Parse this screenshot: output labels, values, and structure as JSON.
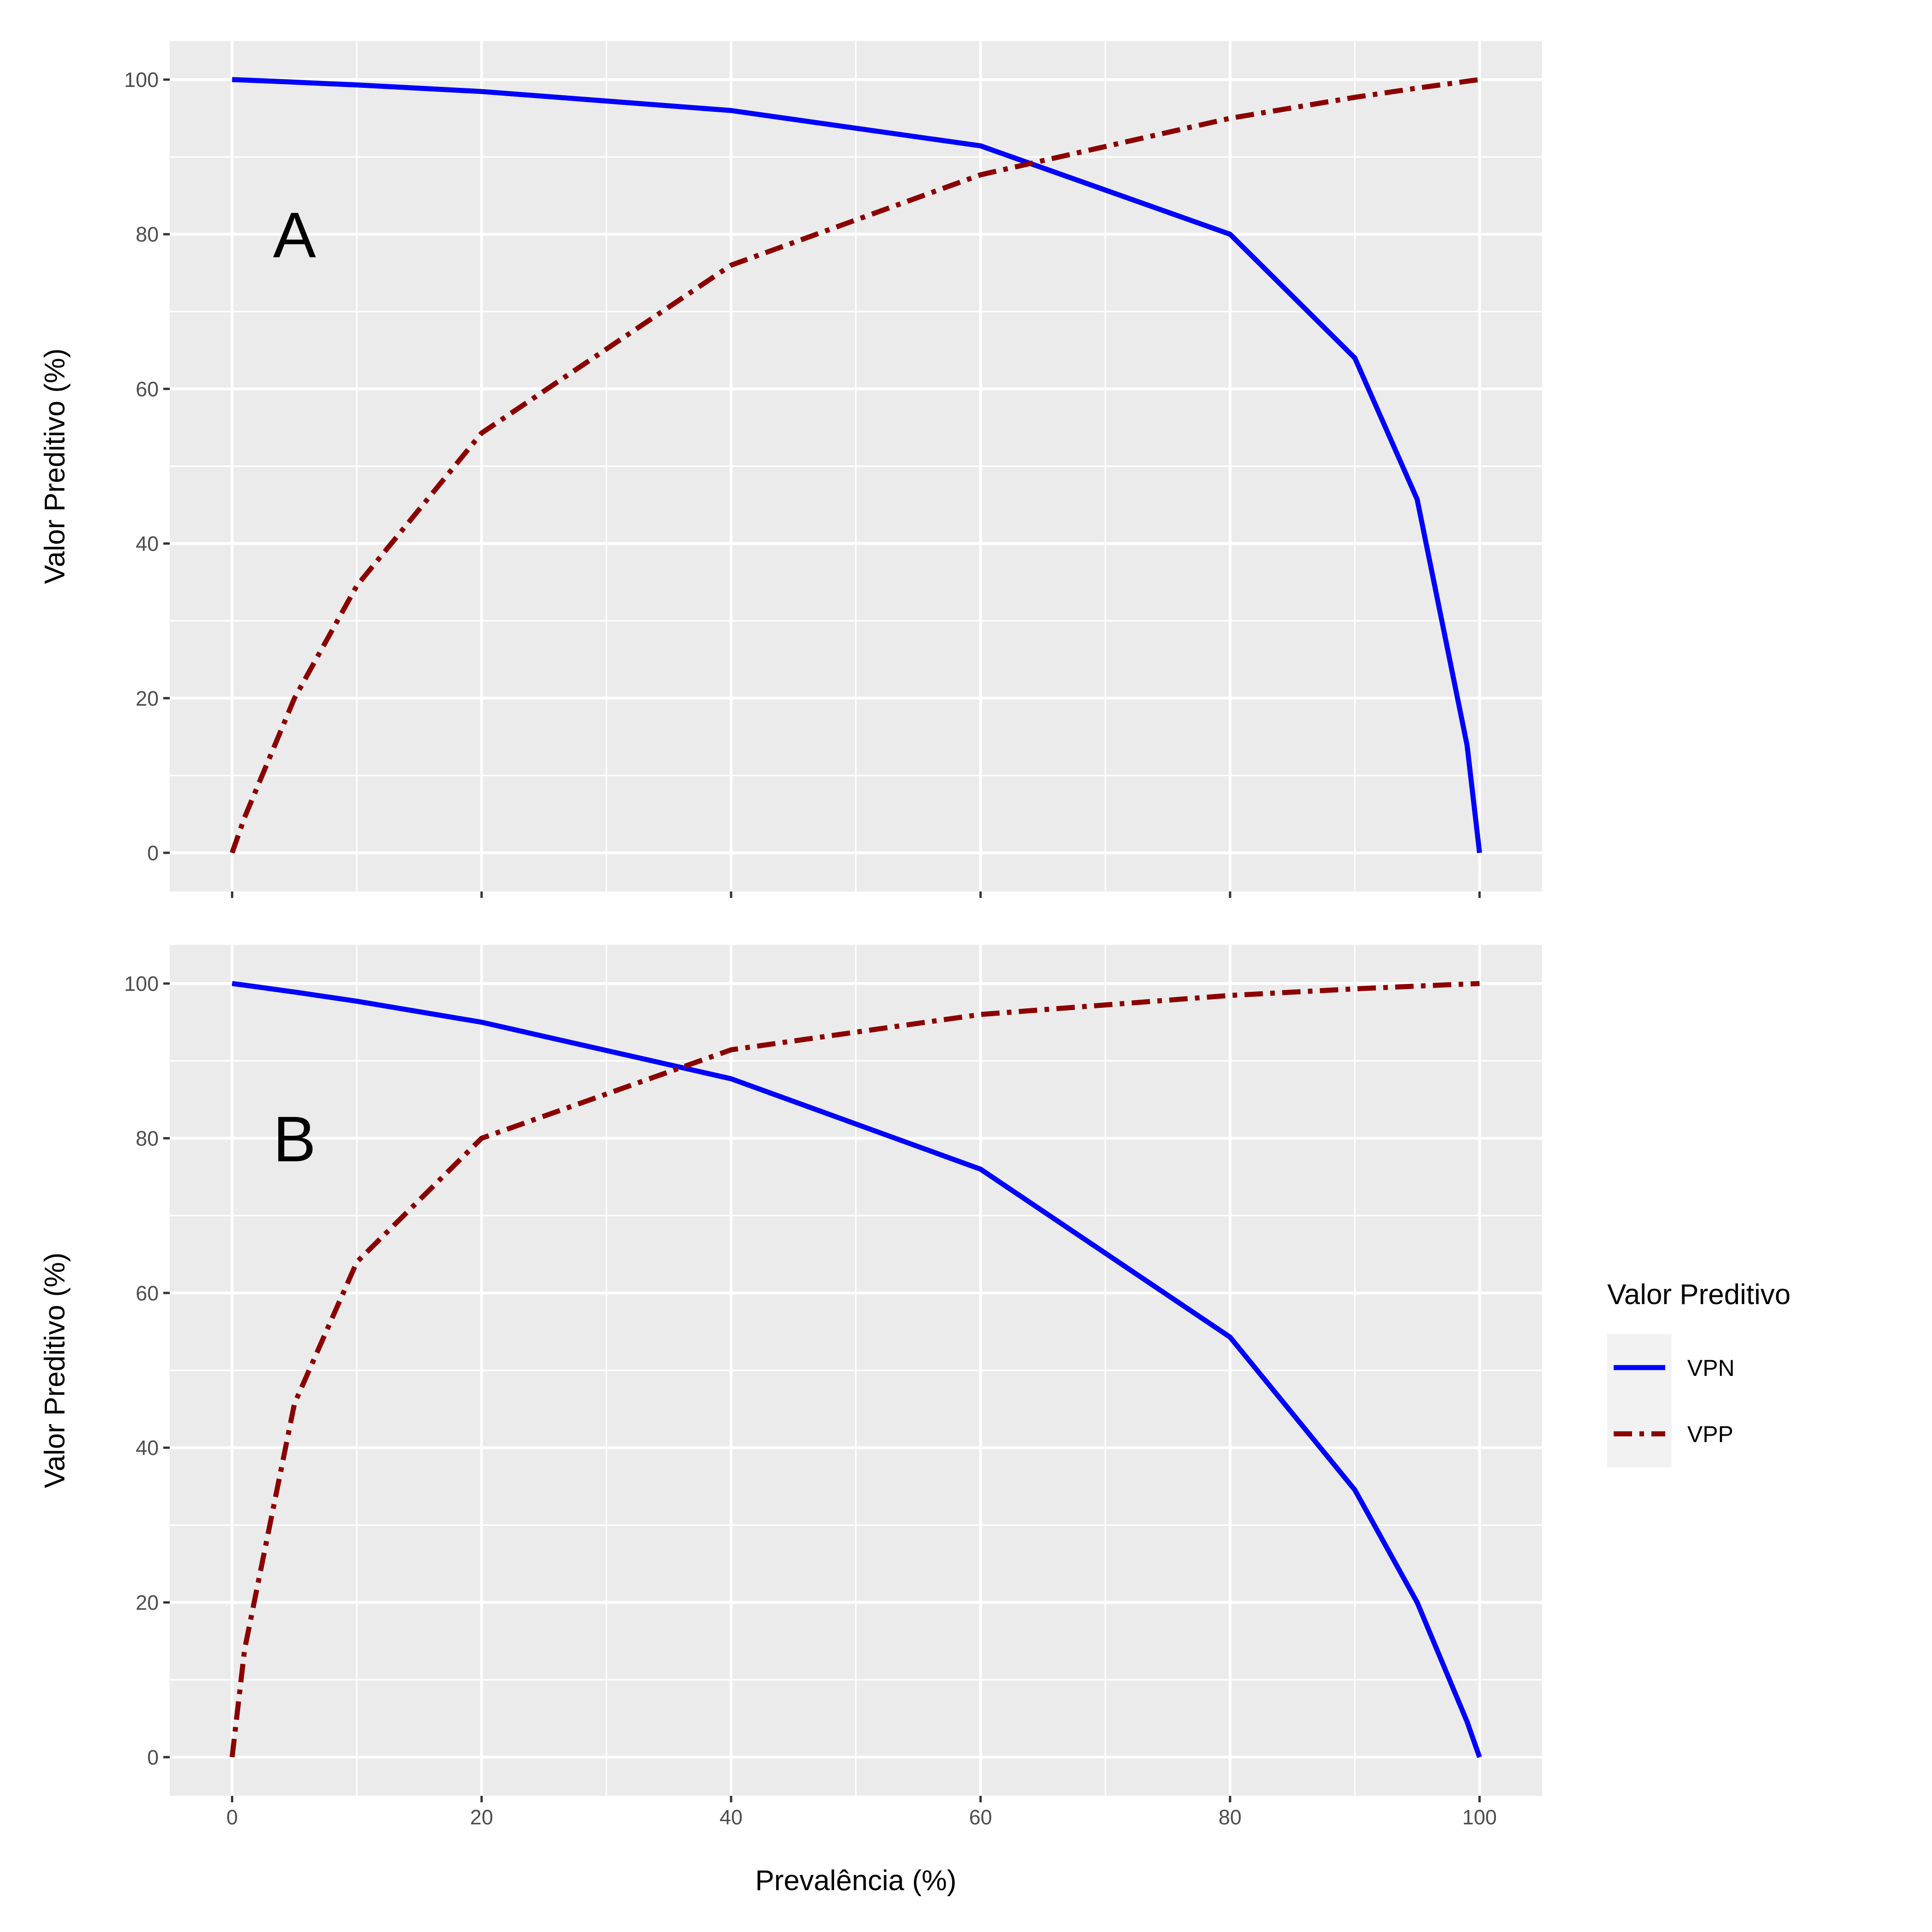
{
  "chart_data": [
    {
      "type": "line",
      "panel_label": "A",
      "xlabel": "",
      "ylabel": "Valor Preditivo (%)",
      "xlim": [
        -5,
        105
      ],
      "ylim": [
        -5,
        105
      ],
      "x_ticks": [
        "0",
        "20",
        "40",
        "60",
        "80",
        "100"
      ],
      "y_ticks": [
        "0",
        "20",
        "40",
        "60",
        "80",
        "100"
      ],
      "x_tick_labels_shown": false,
      "grid": true,
      "x": [
        0,
        1,
        5,
        10,
        20,
        40,
        60,
        80,
        90,
        95,
        99,
        100
      ],
      "series": [
        {
          "name": "VPN",
          "color": "#0000FF",
          "linetype": "solid",
          "values": [
            100,
            99.94,
            99.67,
            99.31,
            98.46,
            96.0,
            91.43,
            80.0,
            64.0,
            45.71,
            13.91,
            0
          ]
        },
        {
          "name": "VPP",
          "color": "#8B0000",
          "linetype": "dotdash",
          "values": [
            0,
            4.58,
            20.0,
            34.55,
            54.29,
            76.0,
            87.69,
            95.0,
            97.71,
            98.9,
            99.79,
            100
          ]
        }
      ]
    },
    {
      "type": "line",
      "panel_label": "B",
      "xlabel": "Prevalência (%)",
      "ylabel": "Valor Preditivo (%)",
      "xlim": [
        -5,
        105
      ],
      "ylim": [
        -5,
        105
      ],
      "x_ticks": [
        "0",
        "20",
        "40",
        "60",
        "80",
        "100"
      ],
      "y_ticks": [
        "0",
        "20",
        "40",
        "60",
        "80",
        "100"
      ],
      "x_tick_labels_shown": true,
      "grid": true,
      "x": [
        0,
        1,
        5,
        10,
        20,
        40,
        60,
        80,
        90,
        95,
        99,
        100
      ],
      "series": [
        {
          "name": "VPN",
          "color": "#0000FF",
          "linetype": "solid",
          "values": [
            100,
            99.79,
            98.9,
            97.71,
            95.0,
            87.69,
            76.0,
            54.29,
            34.55,
            20.0,
            4.58,
            0
          ]
        },
        {
          "name": "VPP",
          "color": "#8B0000",
          "linetype": "dotdash",
          "values": [
            0,
            13.91,
            45.71,
            64.0,
            80.0,
            91.43,
            96.0,
            98.46,
            99.31,
            99.67,
            99.94,
            100
          ]
        }
      ]
    }
  ],
  "legend": {
    "title": "Valor Preditivo",
    "position": "right",
    "items": [
      {
        "label": "VPN",
        "color": "#0000FF"
      },
      {
        "label": "VPP",
        "color": "#8B0000"
      }
    ]
  }
}
